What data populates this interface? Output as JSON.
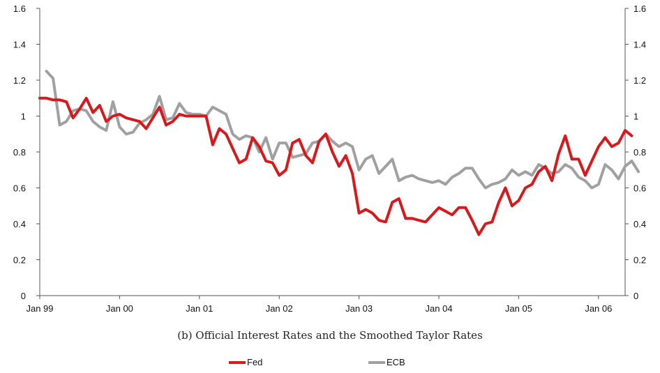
{
  "chart_data": {
    "type": "line",
    "title": "",
    "caption": "(b) Official Interest Rates and the Smoothed Taylor Rates",
    "xlabel": "",
    "ylabel": "",
    "ylim": [
      0,
      1.6
    ],
    "y_ticks": [
      "0",
      "0.2",
      "0.4",
      "0.6",
      "0.8",
      "1",
      "1.2",
      "1.4",
      "1.6"
    ],
    "x_tick_labels": [
      "Jan 99",
      "Jan 00",
      "Jan 01",
      "Jan 02",
      "Jan 03",
      "Jan 04",
      "Jan 05",
      "Jan 06"
    ],
    "x_range_months": [
      0,
      88
    ],
    "secondary_axis": "right (same scale)",
    "grid": false,
    "legend": "bottom",
    "series": [
      {
        "name": "Fed",
        "color": "#d7191c",
        "values": [
          1.1,
          1.1,
          1.09,
          1.09,
          1.08,
          0.99,
          1.04,
          1.1,
          1.02,
          1.06,
          0.97,
          1.0,
          1.01,
          0.99,
          0.98,
          0.97,
          0.93,
          0.99,
          1.05,
          0.95,
          0.97,
          1.01,
          1.0,
          1.0,
          1.0,
          1.0,
          0.84,
          0.93,
          0.9,
          0.82,
          0.74,
          0.76,
          0.88,
          0.83,
          0.75,
          0.74,
          0.67,
          0.7,
          0.85,
          0.87,
          0.78,
          0.74,
          0.86,
          0.9,
          0.8,
          0.72,
          0.78,
          0.68,
          0.46,
          0.48,
          0.46,
          0.42,
          0.41,
          0.52,
          0.54,
          0.43,
          0.43,
          0.42,
          0.41,
          0.45,
          0.49,
          0.47,
          0.45,
          0.49,
          0.49,
          0.42,
          0.34,
          0.4,
          0.41,
          0.52,
          0.6,
          0.5,
          0.53,
          0.6,
          0.62,
          0.69,
          0.72,
          0.64,
          0.79,
          0.89,
          0.76,
          0.76,
          0.67,
          0.75,
          0.83,
          0.88,
          0.83,
          0.85,
          0.92,
          0.89
        ]
      },
      {
        "name": "ECB",
        "color": "#a0a0a0",
        "values": [
          null,
          1.25,
          1.21,
          0.95,
          0.97,
          1.03,
          1.04,
          1.03,
          0.97,
          0.94,
          0.92,
          1.08,
          0.94,
          0.9,
          0.91,
          0.96,
          0.98,
          1.01,
          1.11,
          0.98,
          0.99,
          1.07,
          1.02,
          1.01,
          1.01,
          1.0,
          1.05,
          1.03,
          1.01,
          0.9,
          0.87,
          0.89,
          0.88,
          0.8,
          0.88,
          0.76,
          0.85,
          0.85,
          0.77,
          0.78,
          0.79,
          0.85,
          0.86,
          0.9,
          0.86,
          0.83,
          0.85,
          0.83,
          0.7,
          0.76,
          0.78,
          0.68,
          0.72,
          0.76,
          0.64,
          0.66,
          0.67,
          0.65,
          0.64,
          0.63,
          0.64,
          0.62,
          0.66,
          0.68,
          0.71,
          0.71,
          0.65,
          0.6,
          0.62,
          0.63,
          0.65,
          0.7,
          0.67,
          0.69,
          0.67,
          0.73,
          0.71,
          0.68,
          0.69,
          0.73,
          0.71,
          0.66,
          0.64,
          0.6,
          0.62,
          0.73,
          0.7,
          0.65,
          0.72,
          0.75,
          0.69
        ]
      }
    ]
  }
}
